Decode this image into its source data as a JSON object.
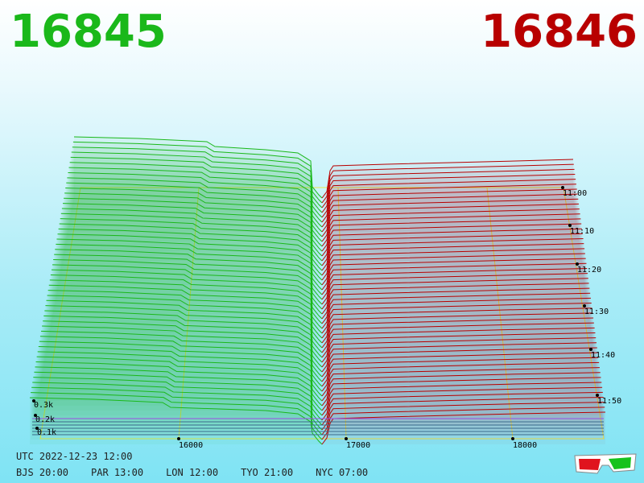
{
  "header": {
    "bid_price": "16845",
    "bid_color": "#1ab81a",
    "ask_price": "16846",
    "ask_color": "#b80000"
  },
  "footer": {
    "utc": "UTC 2022-12-23 12:00",
    "zones": [
      "BJS 20:00",
      "PAR 13:00",
      "LON 12:00",
      "TYO 21:00",
      "NYC 07:00"
    ]
  },
  "chart_data": {
    "type": "area",
    "x_ticks": [
      "16000",
      "17000",
      "18000"
    ],
    "z_ticks": [
      "0.1k",
      "0.2k",
      "0.3k"
    ],
    "y_ticks": [
      "11:00",
      "11:10",
      "11:20",
      "11:30",
      "11:40",
      "11:50"
    ],
    "series": [
      {
        "side": "bid",
        "color": "#1ab81a"
      },
      {
        "side": "ask",
        "color": "#b80000"
      }
    ]
  },
  "icons": {
    "glasses": "3d-glasses-icon"
  }
}
